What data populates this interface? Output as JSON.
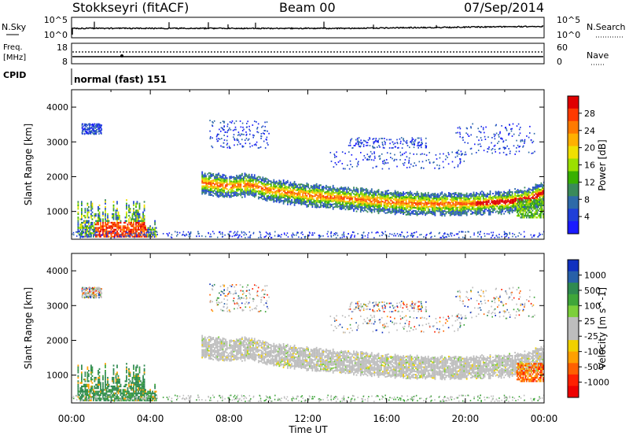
{
  "header": {
    "station": "Stokkseyri (fitACF)",
    "beam": "Beam 00",
    "date": "07/Sep/2014"
  },
  "noise_panel": {
    "left_label": "N.Sky",
    "right_label": "N.Search",
    "left_ticks": [
      "10^5",
      "10^0"
    ],
    "right_ticks": [
      "10^5",
      "10^0"
    ]
  },
  "freq_panel": {
    "left_label_top": "Freq.",
    "left_label_bottom": "[MHz]",
    "left_ticks": [
      "18",
      "8"
    ],
    "right_label": "Nave",
    "right_ticks": [
      "60",
      "0"
    ]
  },
  "cpid_panel": {
    "label": "CPID",
    "text": "normal (fast) 151"
  },
  "axes": {
    "ylabel": "Slant Range [km]",
    "yticks": [
      "4000",
      "3000",
      "2000",
      "1000"
    ],
    "xticks": [
      "00:00",
      "04:00",
      "08:00",
      "12:00",
      "16:00",
      "20:00",
      "00:00"
    ],
    "xlabel": "Time UT"
  },
  "power_colorbar": {
    "label": "Power [dB]",
    "ticks": [
      "28",
      "24",
      "20",
      "16",
      "12",
      "8",
      "4"
    ],
    "colors": [
      "#e00000",
      "#ff3a00",
      "#ff7a00",
      "#ffb000",
      "#f0e000",
      "#9be000",
      "#38b000",
      "#3a8a5a",
      "#2e6aa8",
      "#1f3fd8",
      "#1a1aff"
    ]
  },
  "velocity_colorbar": {
    "label": "Velocity [m s^-1]",
    "ticks": [
      "1000",
      "500",
      "100",
      "25",
      "-25",
      "-100",
      "-500",
      "-1000"
    ],
    "colors": [
      "#1030c0",
      "#2860a8",
      "#2f8a50",
      "#3fa63a",
      "#7ccf3a",
      "#bdbdbd",
      "#bdbdbd",
      "#f0d000",
      "#ffa000",
      "#ff6000",
      "#ff2000",
      "#ee0000"
    ]
  },
  "chart_data": {
    "type": "heatmap",
    "x_range_hours": [
      0,
      24
    ],
    "y_range_km": [
      200,
      4500
    ],
    "power_features": [
      {
        "name": "backscatter band",
        "t": [
          6.6,
          8.0,
          9.0,
          10.0,
          12.0,
          14.0,
          16.0,
          18.0,
          20.0,
          22.0,
          23.3,
          24.0
        ],
        "range_km": [
          1800,
          1700,
          1750,
          1600,
          1450,
          1350,
          1250,
          1200,
          1200,
          1250,
          1350,
          1550
        ],
        "power_db": 20
      },
      {
        "name": "early near-range echoes",
        "t": [
          0.4,
          3.5
        ],
        "range_km": [
          350,
          800
        ],
        "power_db": 26
      }
    ],
    "velocity_features": [
      {
        "name": "backscatter band",
        "t": [
          6.6,
          24.0
        ],
        "velocity": [
          -25,
          25
        ]
      },
      {
        "name": "early near-range echoes",
        "t": [
          0.4,
          4.2
        ],
        "velocity": 150
      }
    ]
  }
}
